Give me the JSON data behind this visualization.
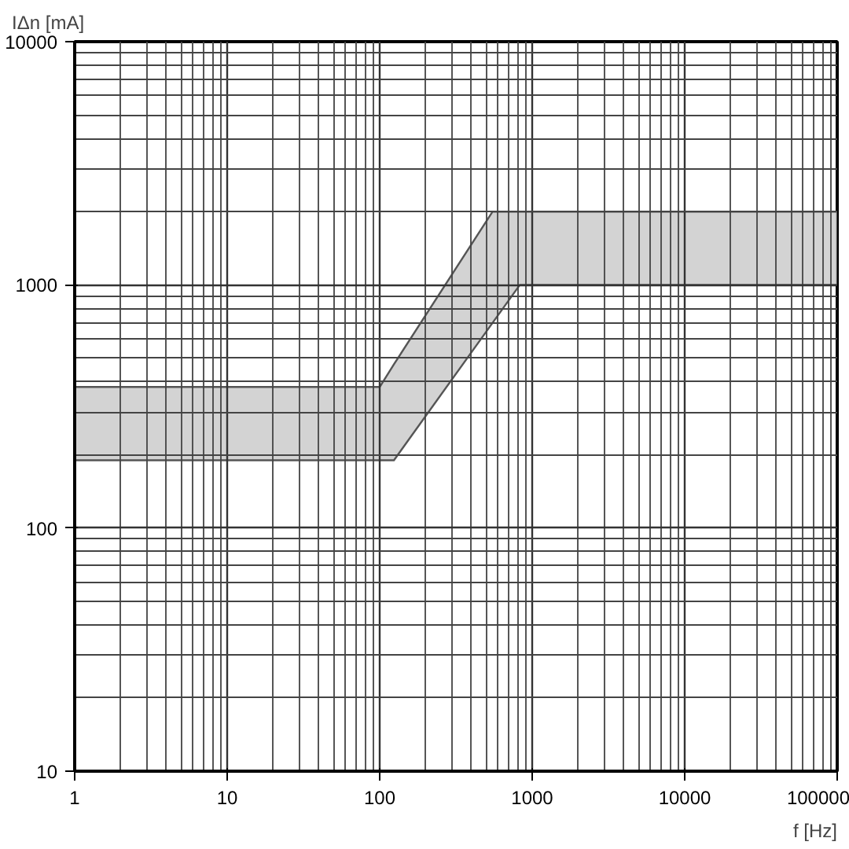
{
  "chart_data": {
    "type": "area",
    "xlabel": "f [Hz]",
    "ylabel": "IΔn [mA]",
    "log": "xy",
    "grid": true,
    "xlim": [
      1,
      100000
    ],
    "ylim": [
      10,
      10000
    ],
    "xticks": [
      1,
      10,
      100,
      1000,
      10000,
      100000
    ],
    "yticks": [
      10,
      100,
      1000,
      10000
    ],
    "series": [
      {
        "color": "#d3d3d3",
        "x": [
          1,
          100,
          124,
          550,
          830,
          100000
        ],
        "values": [
          null,
          null,
          null,
          null,
          null,
          null
        ],
        "lower": [
          190,
          190,
          190,
          698,
          1000,
          1000
        ],
        "upper": [
          380,
          380,
          471,
          2000,
          2000,
          2000
        ]
      }
    ]
  }
}
